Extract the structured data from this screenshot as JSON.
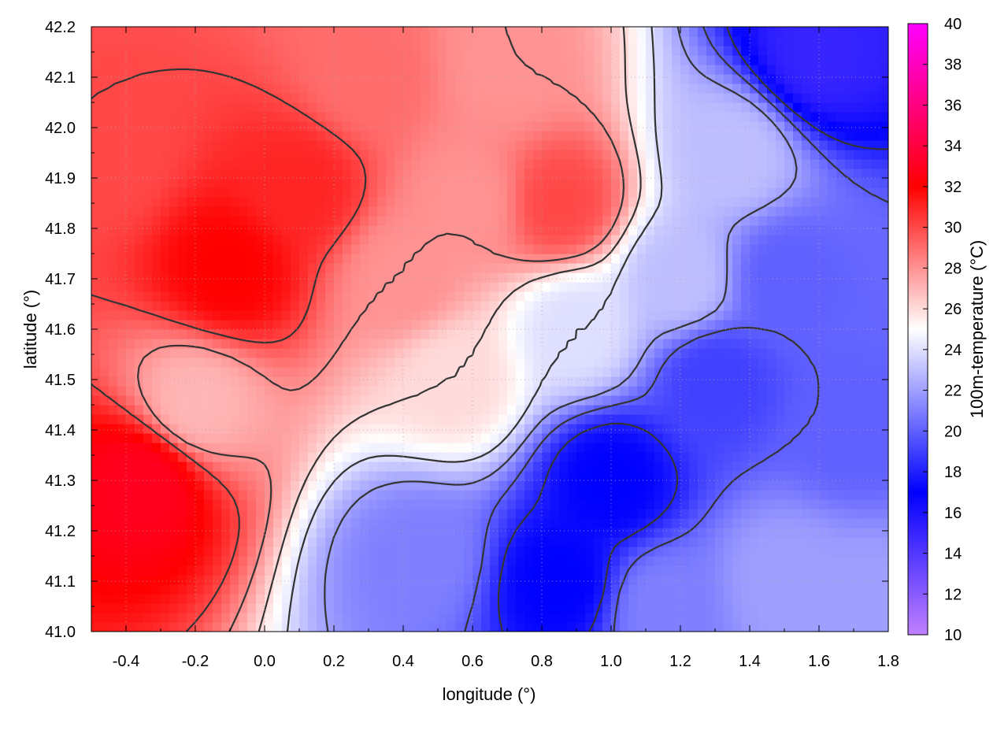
{
  "chart_data": {
    "type": "heatmap",
    "xlabel": "longitude (°)",
    "ylabel": "latitude (°)",
    "colorbar_label": "100m-temperature (°C)",
    "xlim": [
      -0.5,
      1.8
    ],
    "ylim": [
      41.0,
      42.2
    ],
    "x_ticks": [
      "-0.4",
      "-0.2",
      "0.0",
      "0.2",
      "0.4",
      "0.6",
      "0.8",
      "1.0",
      "1.2",
      "1.4",
      "1.6",
      "1.8"
    ],
    "y_ticks": [
      "41.0",
      "41.1",
      "41.2",
      "41.3",
      "41.4",
      "41.5",
      "41.6",
      "41.7",
      "41.8",
      "41.9",
      "42.0",
      "42.1",
      "42.2"
    ],
    "colorbar_range": [
      10,
      40
    ],
    "colorbar_ticks": [
      "10",
      "12",
      "14",
      "16",
      "18",
      "20",
      "22",
      "24",
      "26",
      "28",
      "30",
      "32",
      "34",
      "36",
      "38",
      "40"
    ],
    "colorscale": [
      {
        "value": 10,
        "color": "#c080ff"
      },
      {
        "value": 17,
        "color": "#0000ff"
      },
      {
        "value": 25,
        "color": "#ffffff"
      },
      {
        "value": 32,
        "color": "#ff0000"
      },
      {
        "value": 40,
        "color": "#ff00ff"
      }
    ],
    "grid": true,
    "contour_lines": true,
    "regions": [
      {
        "lon": -0.45,
        "lat": 41.95,
        "temp": 30
      },
      {
        "lon": -0.35,
        "lat": 41.3,
        "temp": 33
      },
      {
        "lon": -0.1,
        "lat": 41.72,
        "temp": 32
      },
      {
        "lon": 0.1,
        "lat": 41.88,
        "temp": 31
      },
      {
        "lon": -0.2,
        "lat": 41.45,
        "temp": 27
      },
      {
        "lon": 0.3,
        "lat": 42.1,
        "temp": 29
      },
      {
        "lon": 0.4,
        "lat": 41.7,
        "temp": 28
      },
      {
        "lon": 0.6,
        "lat": 41.85,
        "temp": 28
      },
      {
        "lon": 0.7,
        "lat": 42.12,
        "temp": 28
      },
      {
        "lon": 0.55,
        "lat": 41.5,
        "temp": 26
      },
      {
        "lon": 0.45,
        "lat": 41.15,
        "temp": 21
      },
      {
        "lon": 0.85,
        "lat": 41.85,
        "temp": 30
      },
      {
        "lon": 0.9,
        "lat": 41.6,
        "temp": 24
      },
      {
        "lon": 1.0,
        "lat": 41.3,
        "temp": 17
      },
      {
        "lon": 0.85,
        "lat": 41.1,
        "temp": 17
      },
      {
        "lon": 1.2,
        "lat": 41.7,
        "temp": 23
      },
      {
        "lon": 1.3,
        "lat": 41.5,
        "temp": 19
      },
      {
        "lon": 1.5,
        "lat": 41.7,
        "temp": 20
      },
      {
        "lon": 1.6,
        "lat": 42.15,
        "temp": 15
      },
      {
        "lon": 1.35,
        "lat": 41.95,
        "temp": 23
      },
      {
        "lon": 1.7,
        "lat": 41.4,
        "temp": 20
      },
      {
        "lon": 1.5,
        "lat": 41.1,
        "temp": 22
      },
      {
        "lon": 1.75,
        "lat": 41.05,
        "temp": 22
      },
      {
        "lon": 1.15,
        "lat": 41.05,
        "temp": 21
      }
    ]
  }
}
